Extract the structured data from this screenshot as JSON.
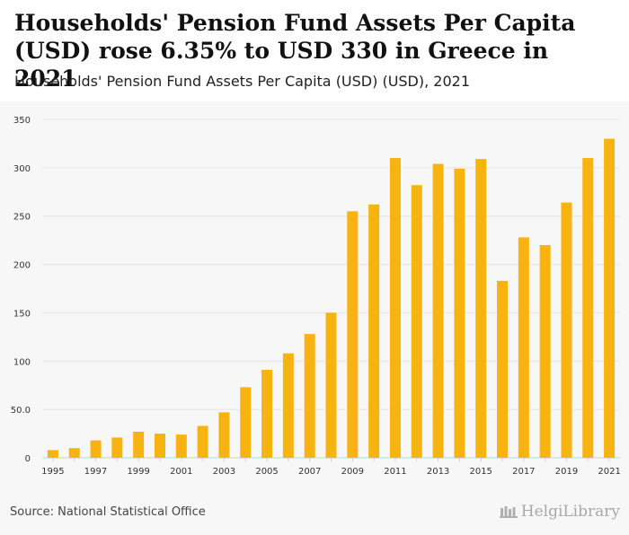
{
  "header": {
    "title": "Households' Pension Fund Assets Per Capita (USD) rose 6.35% to USD 330 in Greece in 2021",
    "subtitle": "Households' Pension Fund Assets Per Capita (USD) (USD), 2021"
  },
  "footer": {
    "source": "Source: National Statistical Office",
    "logo_text": "HelgiLibrary"
  },
  "colors": {
    "bar": "#f7b30f",
    "grid": "#e4e4e4",
    "background": "#f7f7f7"
  },
  "chart_data": {
    "type": "bar",
    "title": "Households' Pension Fund Assets Per Capita (USD) rose 6.35% to USD 330 in Greece in 2021",
    "xlabel": "",
    "ylabel": "",
    "ylim": [
      0,
      350
    ],
    "yticks": [
      0,
      50,
      100,
      150,
      200,
      250,
      300,
      350
    ],
    "ytick_labels": [
      "0",
      "50.0",
      "100",
      "150",
      "200",
      "250",
      "300",
      "350"
    ],
    "grid": true,
    "categories": [
      "1995",
      "1996",
      "1997",
      "1998",
      "1999",
      "2000",
      "2001",
      "2002",
      "2003",
      "2004",
      "2005",
      "2006",
      "2007",
      "2008",
      "2009",
      "2010",
      "2011",
      "2012",
      "2013",
      "2014",
      "2015",
      "2016",
      "2017",
      "2018",
      "2019",
      "2020",
      "2021"
    ],
    "xtick_labels": [
      "1995",
      "",
      "1997",
      "",
      "1999",
      "",
      "2001",
      "",
      "2003",
      "",
      "2005",
      "",
      "2007",
      "",
      "2009",
      "",
      "2011",
      "",
      "2013",
      "",
      "2015",
      "",
      "2017",
      "",
      "2019",
      "",
      "2021"
    ],
    "values": [
      8,
      10,
      18,
      21,
      27,
      25,
      24,
      33,
      47,
      73,
      91,
      108,
      128,
      150,
      255,
      262,
      310,
      282,
      304,
      299,
      309,
      183,
      228,
      220,
      264,
      310,
      330
    ]
  }
}
